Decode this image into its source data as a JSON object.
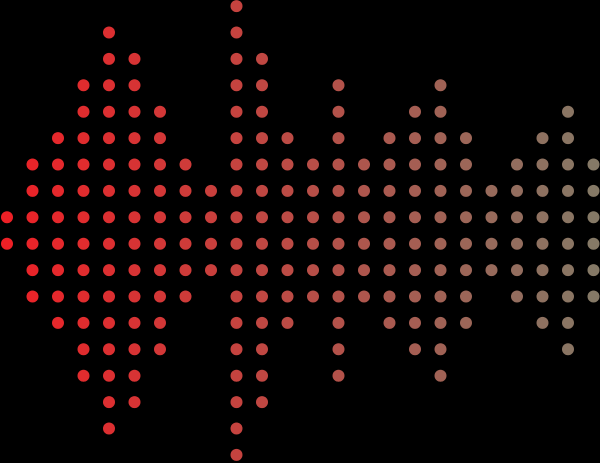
{
  "columns": [
    2,
    6,
    8,
    12,
    16,
    14,
    10,
    6,
    4,
    18,
    14,
    8,
    6,
    12,
    6,
    8,
    10,
    12,
    8,
    4,
    6,
    8,
    10,
    6
  ],
  "gradient": {
    "start": "#ee2026",
    "end": "#857966"
  }
}
